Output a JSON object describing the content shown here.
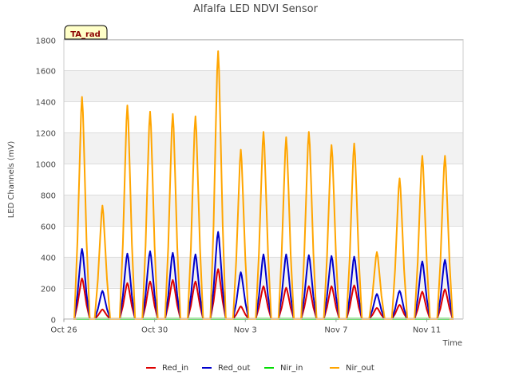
{
  "chart_data": {
    "type": "line",
    "title": "Alfalfa LED NDVI Sensor",
    "xlabel": "Time",
    "ylabel": "LED Channels (mV)",
    "badge": "TA_rad",
    "ylim": [
      0,
      1800
    ],
    "yticks": [
      0,
      200,
      400,
      600,
      800,
      1000,
      1200,
      1400,
      1600,
      1800
    ],
    "xlim": [
      0,
      17.6
    ],
    "xticks": [
      {
        "value": 0,
        "label": "Oct 26"
      },
      {
        "value": 4,
        "label": "Oct 30"
      },
      {
        "value": 8,
        "label": "Nov 3"
      },
      {
        "value": 12,
        "label": "Nov 7"
      },
      {
        "value": 16,
        "label": "Nov 11"
      }
    ],
    "colors": {
      "Red_in": "#dd0000",
      "Red_out": "#0000cc",
      "Nir_in": "#00dd00",
      "Nir_out": "#ffa500"
    },
    "days": [
      {
        "center": 0.8,
        "nir": 1430,
        "red_out": 450,
        "red_in": 260
      },
      {
        "center": 1.7,
        "nir": 730,
        "red_out": 180,
        "red_in": 60
      },
      {
        "center": 2.8,
        "nir": 1375,
        "red_out": 420,
        "red_in": 230
      },
      {
        "center": 3.8,
        "nir": 1335,
        "red_out": 435,
        "red_in": 240
      },
      {
        "center": 4.8,
        "nir": 1320,
        "red_out": 425,
        "red_in": 250
      },
      {
        "center": 5.8,
        "nir": 1305,
        "red_out": 415,
        "red_in": 240
      },
      {
        "center": 6.8,
        "nir": 1725,
        "red_out": 560,
        "red_in": 320
      },
      {
        "center": 7.8,
        "nir": 1090,
        "red_out": 300,
        "red_in": 80
      },
      {
        "center": 8.8,
        "nir": 1205,
        "red_out": 415,
        "red_in": 210
      },
      {
        "center": 9.8,
        "nir": 1170,
        "red_out": 415,
        "red_in": 200
      },
      {
        "center": 10.8,
        "nir": 1205,
        "red_out": 410,
        "red_in": 210
      },
      {
        "center": 11.8,
        "nir": 1120,
        "red_out": 405,
        "red_in": 210
      },
      {
        "center": 12.8,
        "nir": 1130,
        "red_out": 400,
        "red_in": 215
      },
      {
        "center": 13.8,
        "nir": 430,
        "red_out": 160,
        "red_in": 70
      },
      {
        "center": 14.8,
        "nir": 905,
        "red_out": 180,
        "red_in": 90
      },
      {
        "center": 15.8,
        "nir": 1050,
        "red_out": 370,
        "red_in": 175
      },
      {
        "center": 16.8,
        "nir": 1050,
        "red_out": 380,
        "red_in": 190
      }
    ],
    "series": [
      {
        "name": "Red_in"
      },
      {
        "name": "Red_out"
      },
      {
        "name": "Nir_in"
      },
      {
        "name": "Nir_out"
      }
    ]
  }
}
